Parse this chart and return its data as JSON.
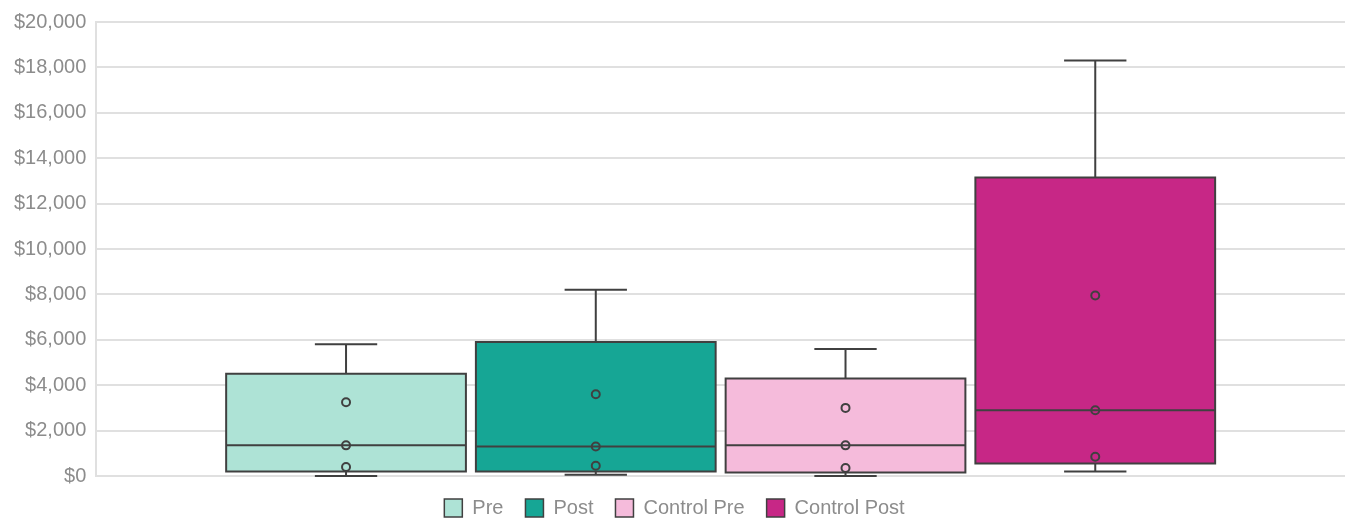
{
  "chart_data": {
    "type": "box",
    "categories": [
      null
    ],
    "series": [
      {
        "name": "Pre",
        "color": "#aee3d6",
        "boxes": [
          {
            "low": 0,
            "q1": 200,
            "median": 1350,
            "q3": 4500,
            "high": 5800,
            "outliers": [
              3250,
              1350,
              400
            ]
          }
        ]
      },
      {
        "name": "Post",
        "color": "#16a695",
        "boxes": [
          {
            "low": 50,
            "q1": 200,
            "median": 1300,
            "q3": 5900,
            "high": 8200,
            "outliers": [
              3600,
              1300,
              450
            ]
          }
        ]
      },
      {
        "name": "Control Pre",
        "color": "#f5bbdb",
        "boxes": [
          {
            "low": 0,
            "q1": 150,
            "median": 1350,
            "q3": 4300,
            "high": 5600,
            "outliers": [
              3000,
              1350,
              350
            ]
          }
        ]
      },
      {
        "name": "Control Post",
        "color": "#c72786",
        "boxes": [
          {
            "low": 200,
            "q1": 550,
            "median": 2900,
            "q3": 13150,
            "high": 18300,
            "outliers": [
              7950,
              2900,
              850
            ]
          }
        ]
      }
    ],
    "ylim": [
      0,
      20000
    ],
    "yticks": [
      {
        "value": 0,
        "label": "$0"
      },
      {
        "value": 2000,
        "label": "$2,000"
      },
      {
        "value": 4000,
        "label": "$4,000"
      },
      {
        "value": 6000,
        "label": "$6,000"
      },
      {
        "value": 8000,
        "label": "$8,000"
      },
      {
        "value": 10000,
        "label": "$10,000"
      },
      {
        "value": 12000,
        "label": "$12,000"
      },
      {
        "value": 14000,
        "label": "$14,000"
      },
      {
        "value": 16000,
        "label": "$16,000"
      },
      {
        "value": 18000,
        "label": "$18,000"
      },
      {
        "value": 20000,
        "label": "$20,000"
      }
    ],
    "grid": "y",
    "legend": "bottom"
  }
}
